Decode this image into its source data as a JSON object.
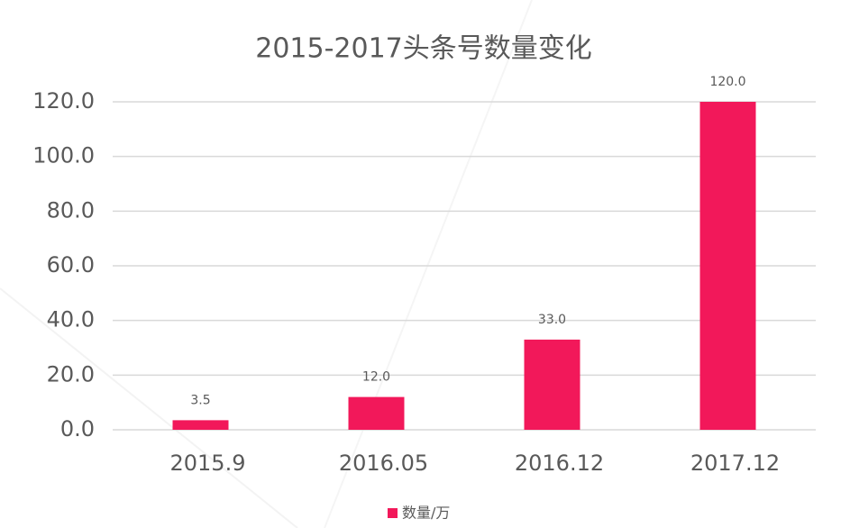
{
  "chart_data": {
    "type": "bar",
    "title": "2015-2017头条号数量变化",
    "categories": [
      "2015.9",
      "2016.05",
      "2016.12",
      "2017.12"
    ],
    "series": [
      {
        "name": "数量/万",
        "color": "#f2185a",
        "values": [
          3.5,
          12,
          33,
          120
        ],
        "value_labels": [
          "3.5",
          "12.0",
          "33.0",
          "120.0"
        ]
      }
    ],
    "ylim": [
      0,
      120
    ],
    "yticks": [
      {
        "value": 0,
        "label": "0.0"
      },
      {
        "value": 20,
        "label": "20.0"
      },
      {
        "value": 40,
        "label": "40.0"
      },
      {
        "value": 60,
        "label": "60.0"
      },
      {
        "value": 80,
        "label": "80.0"
      },
      {
        "value": 100,
        "label": "100.0"
      },
      {
        "value": 120,
        "label": "120.0"
      }
    ],
    "grid": true,
    "legend": "bottom"
  }
}
